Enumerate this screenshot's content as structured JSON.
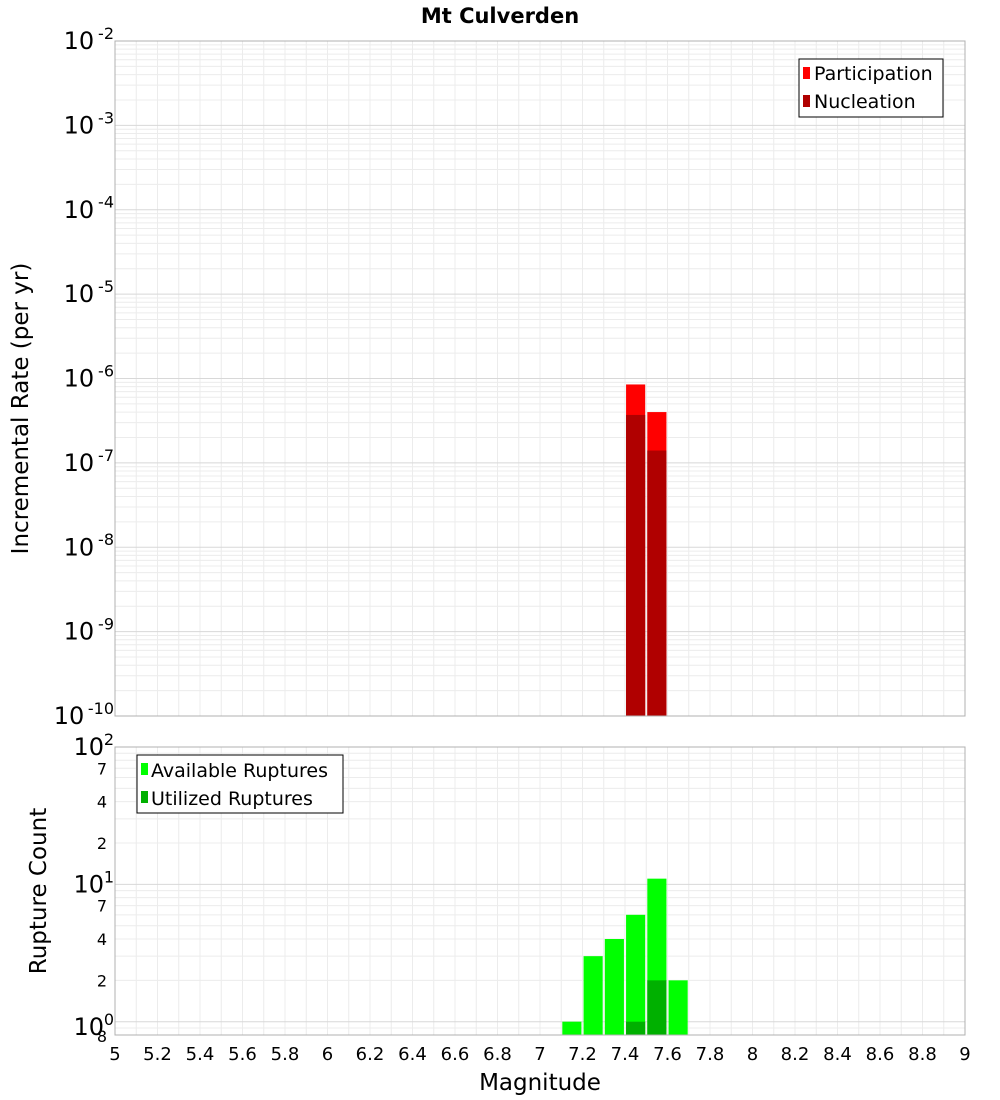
{
  "chart_data": [
    {
      "type": "bar",
      "title": "Mt Culverden",
      "xlabel": "",
      "ylabel": "Incremental Rate (per yr)",
      "y_scale": "log",
      "xlim": [
        5,
        9
      ],
      "ylim": [
        1e-10,
        0.01
      ],
      "y_ticks": [
        {
          "mant": "10",
          "exp": "-2"
        },
        {
          "mant": "10",
          "exp": "-3"
        },
        {
          "mant": "10",
          "exp": "-4"
        },
        {
          "mant": "10",
          "exp": "-5"
        },
        {
          "mant": "10",
          "exp": "-6"
        },
        {
          "mant": "10",
          "exp": "-7"
        },
        {
          "mant": "10",
          "exp": "-8"
        },
        {
          "mant": "10",
          "exp": "-9"
        },
        {
          "mant": "10",
          "exp": "-10"
        }
      ],
      "grid": true,
      "legend_position": "top-right",
      "bar_width": 0.09,
      "series": [
        {
          "name": "Participation",
          "color": "#ff0000",
          "x": [
            7.45,
            7.55
          ],
          "values": [
            8.5e-07,
            4e-07
          ]
        },
        {
          "name": "Nucleation",
          "color": "#b00000",
          "x": [
            7.45,
            7.55
          ],
          "values": [
            3.7e-07,
            1.4e-07
          ]
        }
      ]
    },
    {
      "type": "bar",
      "title": "",
      "xlabel": "Magnitude",
      "ylabel": "Rupture Count",
      "y_scale": "log",
      "xlim": [
        5,
        9
      ],
      "ylim": [
        0.8,
        100
      ],
      "x_ticks": [
        "5",
        "5.2",
        "5.4",
        "5.6",
        "5.8",
        "6",
        "6.2",
        "6.4",
        "6.6",
        "6.8",
        "7",
        "7.2",
        "7.4",
        "7.6",
        "7.8",
        "8",
        "8.2",
        "8.4",
        "8.6",
        "8.8",
        "9"
      ],
      "y_major_ticks": [
        {
          "mant": "10",
          "exp": "2"
        },
        {
          "mant": "10",
          "exp": "1"
        },
        {
          "mant": "10",
          "exp": "0"
        }
      ],
      "y_minor_tick_labels": [
        "7",
        "4",
        "2",
        "7",
        "4",
        "2",
        "8"
      ],
      "grid": true,
      "legend_position": "top-left",
      "bar_width": 0.09,
      "series": [
        {
          "name": "Available Ruptures",
          "color": "#00ff00",
          "x": [
            7.15,
            7.25,
            7.35,
            7.45,
            7.55,
            7.65
          ],
          "values": [
            1,
            3,
            4,
            6,
            11,
            2
          ]
        },
        {
          "name": "Utilized Ruptures",
          "color": "#00b000",
          "x": [
            7.45,
            7.55
          ],
          "values": [
            1,
            2
          ]
        }
      ]
    }
  ]
}
